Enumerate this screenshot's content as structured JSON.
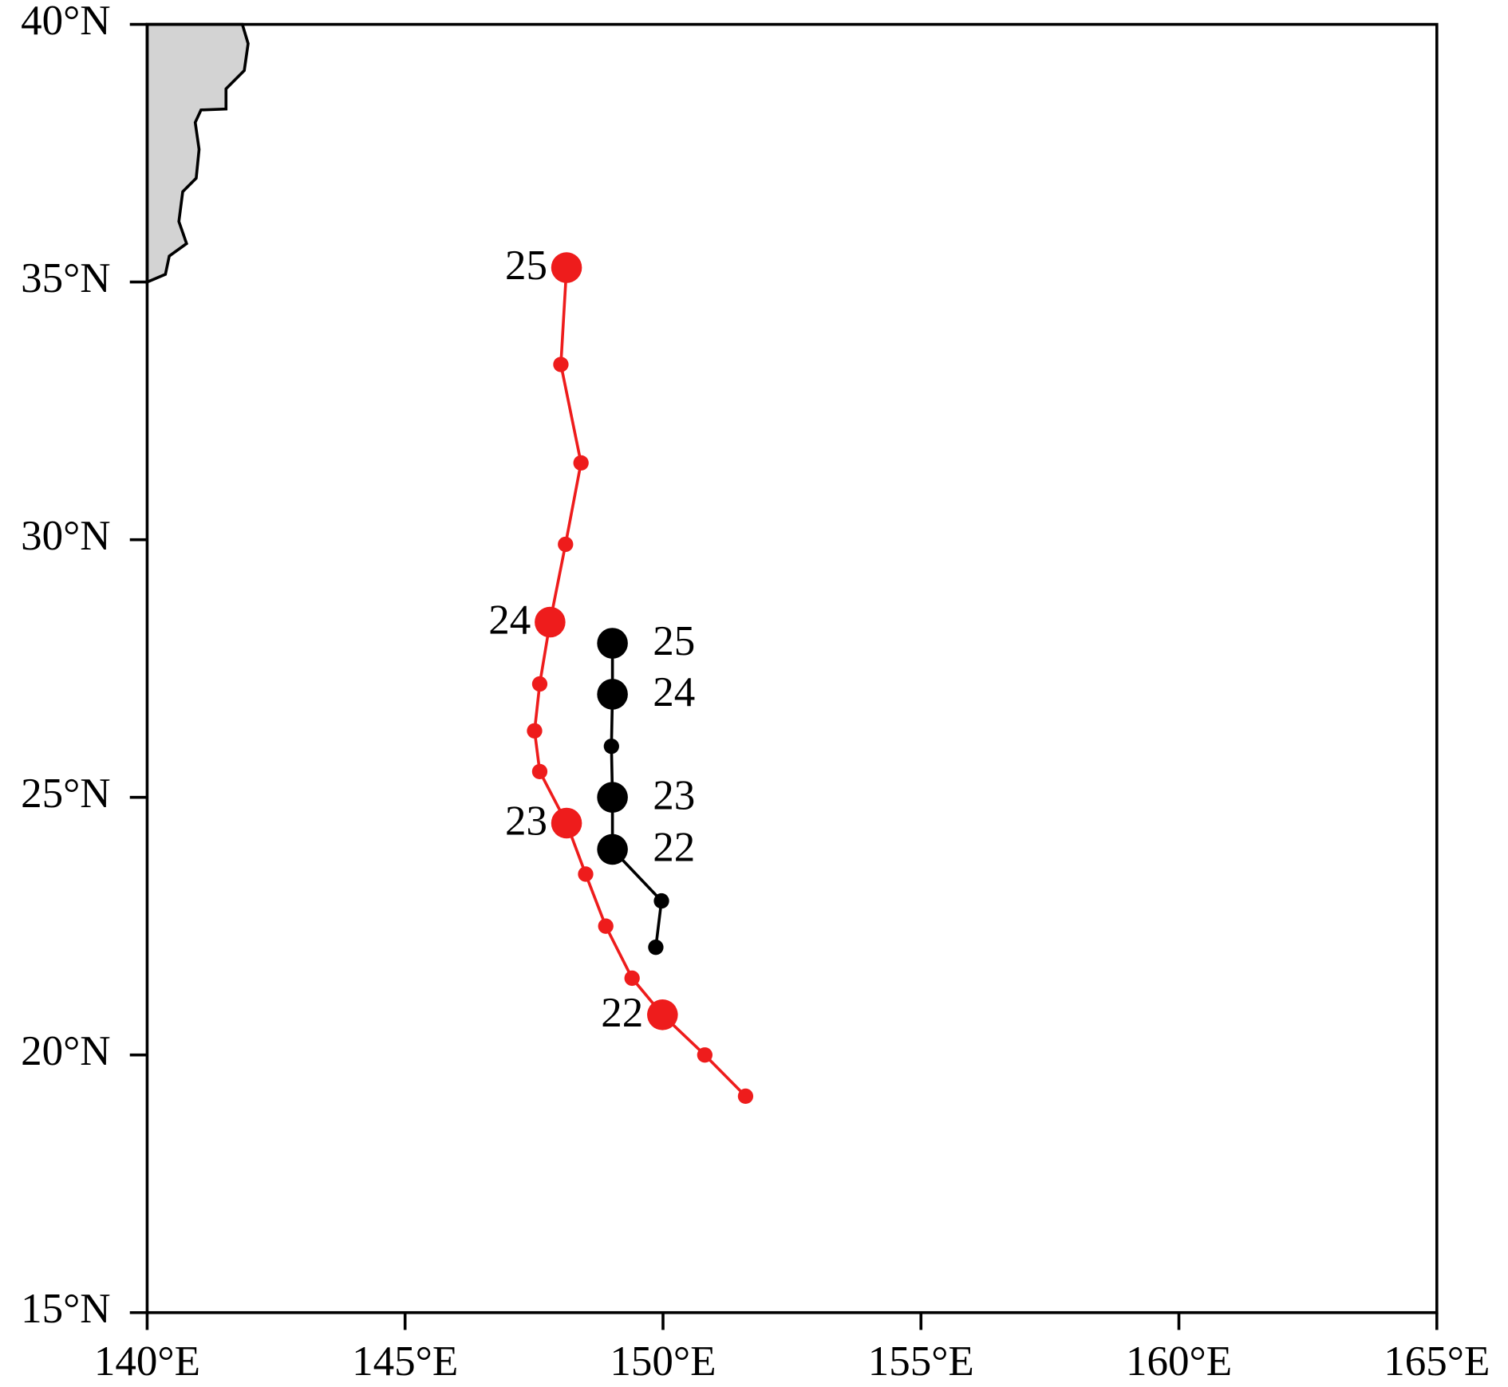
{
  "chart_data": {
    "type": "line",
    "xlim": [
      140,
      165
    ],
    "ylim": [
      15,
      40
    ],
    "xticks": [
      {
        "value": 140,
        "label": "140°E"
      },
      {
        "value": 145,
        "label": "145°E"
      },
      {
        "value": 150,
        "label": "150°E"
      },
      {
        "value": 155,
        "label": "155°E"
      },
      {
        "value": 160,
        "label": "160°E"
      },
      {
        "value": 165,
        "label": "165°E"
      }
    ],
    "yticks": [
      {
        "value": 15,
        "label": "15°N"
      },
      {
        "value": 20,
        "label": "20°N"
      },
      {
        "value": 25,
        "label": "25°N"
      },
      {
        "value": 30,
        "label": "30°N"
      },
      {
        "value": 35,
        "label": "35°N"
      },
      {
        "value": 40,
        "label": "40°N"
      }
    ],
    "series": [
      {
        "color": "#ee1c1c",
        "x": [
          151.6,
          150.81,
          149.99,
          149.4,
          148.89,
          148.5,
          148.13,
          147.61,
          147.51,
          147.61,
          147.81,
          148.11,
          148.41,
          148.02,
          148.13
        ],
        "values": [
          19.2,
          20.0,
          20.78,
          21.49,
          22.5,
          23.51,
          24.5,
          25.5,
          26.29,
          27.2,
          28.4,
          29.91,
          31.49,
          33.4,
          35.28
        ],
        "point_labels": [
          null,
          null,
          "22",
          null,
          null,
          null,
          "23",
          null,
          null,
          null,
          "24",
          null,
          null,
          null,
          "25"
        ]
      },
      {
        "color": "#000000",
        "x": [
          149.86,
          149.97,
          149.02,
          149.02,
          149.0,
          149.02,
          149.02
        ],
        "values": [
          22.09,
          22.99,
          23.99,
          25.0,
          25.99,
          27.0,
          27.99
        ],
        "point_labels": [
          null,
          null,
          "22",
          "23",
          null,
          "24",
          "25"
        ]
      }
    ]
  }
}
